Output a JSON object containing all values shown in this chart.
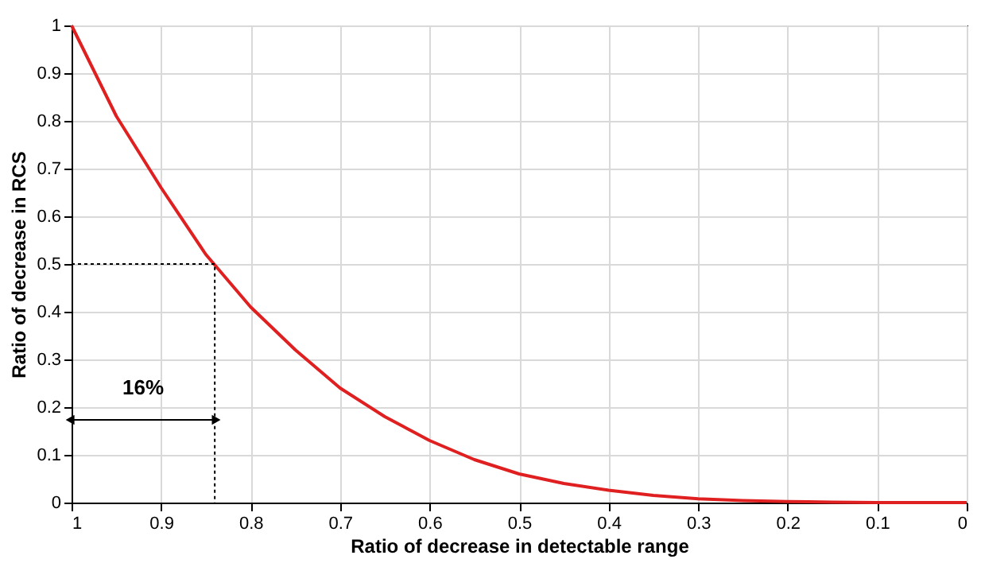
{
  "chart_data": {
    "type": "line",
    "xlabel": "Ratio of decrease in detectable range",
    "ylabel": "Ratio of decrease in RCS",
    "xlim": [
      1,
      0
    ],
    "ylim": [
      0,
      1
    ],
    "xticks": [
      1,
      0.9,
      0.8,
      0.7,
      0.6,
      0.5,
      0.4,
      0.3,
      0.2,
      0.1,
      0
    ],
    "yticks": [
      0,
      0.1,
      0.2,
      0.3,
      0.4,
      0.5,
      0.6,
      0.7,
      0.8,
      0.9,
      1
    ],
    "grid": true,
    "marker": "none",
    "series": [
      {
        "color": "#e02020",
        "line_style": "solid",
        "x": [
          1,
          0.95,
          0.9,
          0.85,
          0.8,
          0.75,
          0.7,
          0.65,
          0.6,
          0.55,
          0.5,
          0.45,
          0.4,
          0.35,
          0.3,
          0.25,
          0.2,
          0.15,
          0.1,
          0.05,
          0
        ],
        "values": [
          1,
          0.81,
          0.66,
          0.52,
          0.41,
          0.32,
          0.24,
          0.18,
          0.13,
          0.09,
          0.06,
          0.04,
          0.026,
          0.015,
          0.008,
          0.004,
          0.002,
          0.001,
          0,
          0,
          0
        ]
      },
      {
        "color": "#000000",
        "line_style": "dotted",
        "x": [
          1,
          0.84,
          0.84
        ],
        "values": [
          0.5,
          0.5,
          0
        ]
      }
    ],
    "annotations": [
      "16%"
    ]
  }
}
